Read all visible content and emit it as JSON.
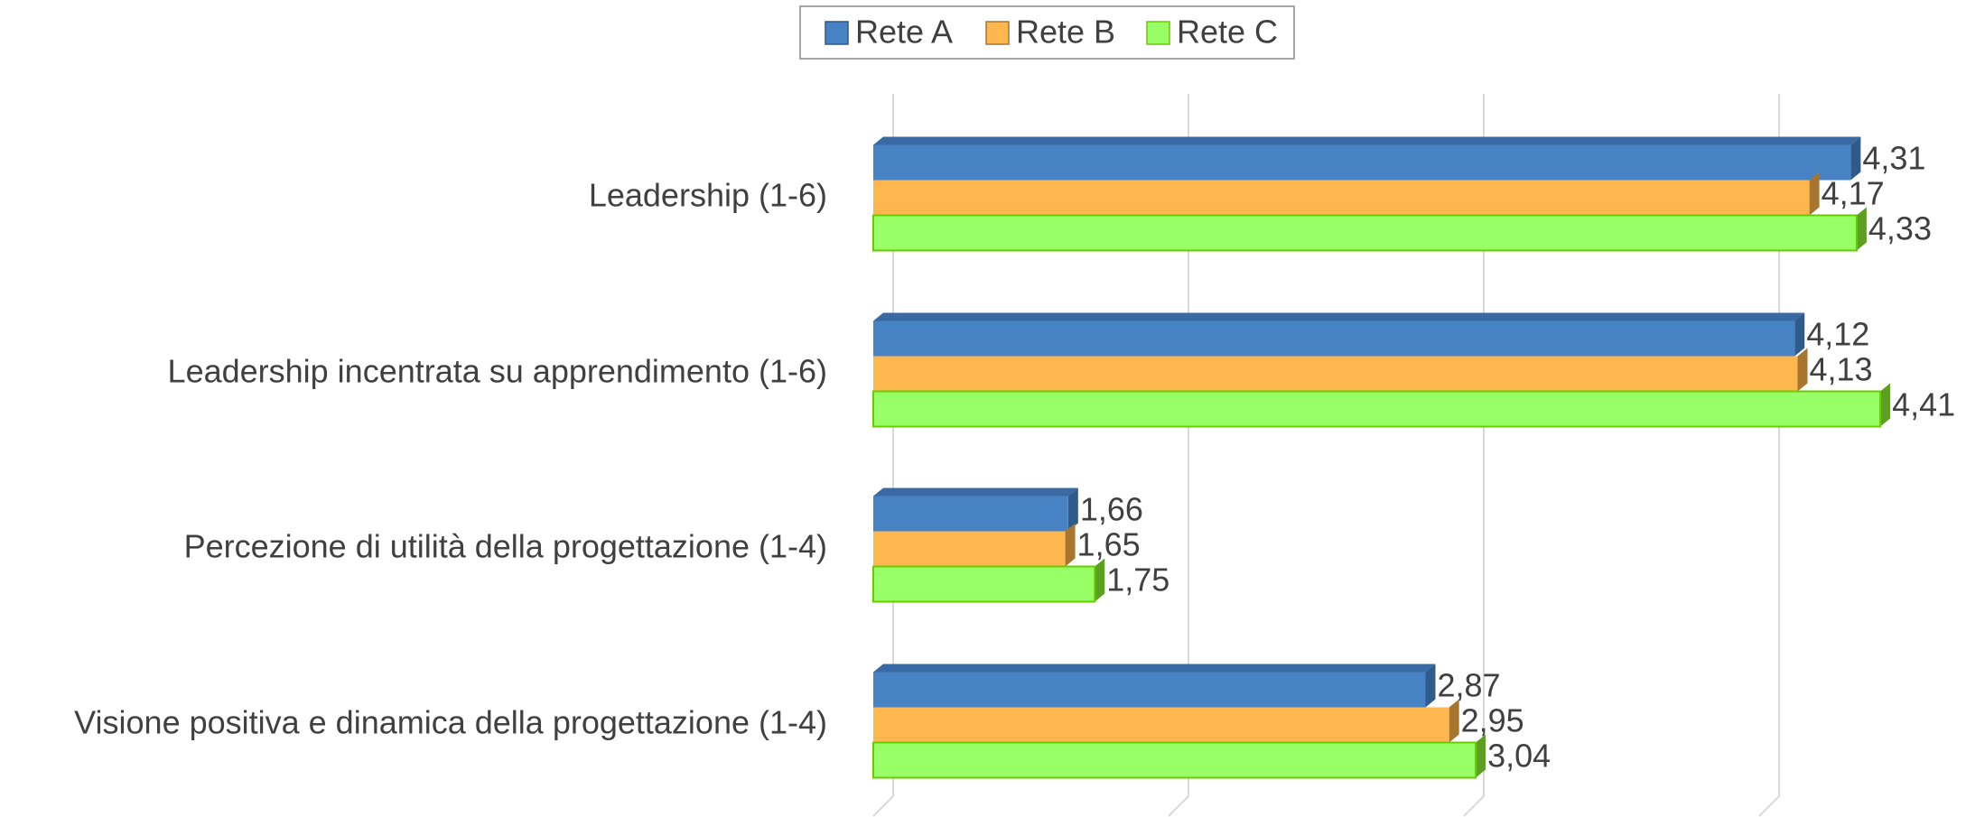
{
  "chart_data": {
    "type": "bar",
    "orientation": "horizontal",
    "categories": [
      "Leadership (1-6)",
      "Leadership incentrata su apprendimento (1-6)",
      "Percezione di utilità della progettazione (1-4)",
      "Visione positiva e dinamica della progettazione (1-4)"
    ],
    "series": [
      {
        "name": "Rete A",
        "color": "#4682c4",
        "values": [
          4.31,
          4.12,
          1.66,
          2.87
        ],
        "value_labels": [
          "4,31",
          "4,12",
          "1,66",
          "2,87"
        ]
      },
      {
        "name": "Rete B",
        "color": "#fdb74e",
        "values": [
          4.17,
          4.13,
          1.65,
          2.95
        ],
        "value_labels": [
          "4,17",
          "4,13",
          "1,65",
          "2,95"
        ]
      },
      {
        "name": "Rete C",
        "color": "#99ff66",
        "values": [
          4.33,
          4.41,
          1.75,
          3.04
        ],
        "value_labels": [
          "4,33",
          "4,41",
          "1,75",
          "3,04"
        ]
      }
    ],
    "xlim": [
      1,
      4.5
    ],
    "xticks": [
      1,
      2,
      3,
      4
    ],
    "grid": true,
    "legend": "top"
  }
}
